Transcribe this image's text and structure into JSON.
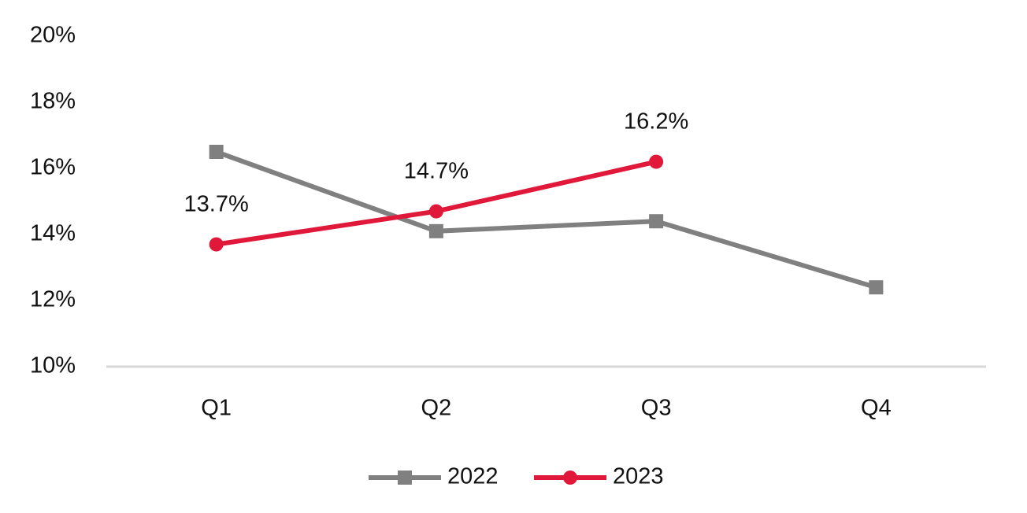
{
  "chart_data": {
    "type": "line",
    "categories": [
      "Q1",
      "Q2",
      "Q3",
      "Q4"
    ],
    "series": [
      {
        "name": "2022",
        "color": "#808080",
        "marker": "square",
        "values": [
          16.5,
          14.1,
          14.4,
          12.4
        ]
      },
      {
        "name": "2023",
        "color": "#e0193a",
        "marker": "circle",
        "values": [
          13.7,
          14.7,
          16.2,
          null
        ],
        "value_labels": [
          "13.7%",
          "14.7%",
          "16.2%",
          null
        ]
      }
    ],
    "ylim": [
      10,
      20
    ],
    "yticks": [
      {
        "value": 10,
        "label": "10%"
      },
      {
        "value": 12,
        "label": "12%"
      },
      {
        "value": 14,
        "label": "14%"
      },
      {
        "value": 16,
        "label": "16%"
      },
      {
        "value": 18,
        "label": "18%"
      },
      {
        "value": 20,
        "label": "20%"
      }
    ],
    "grid": false,
    "legend": "bottom"
  }
}
